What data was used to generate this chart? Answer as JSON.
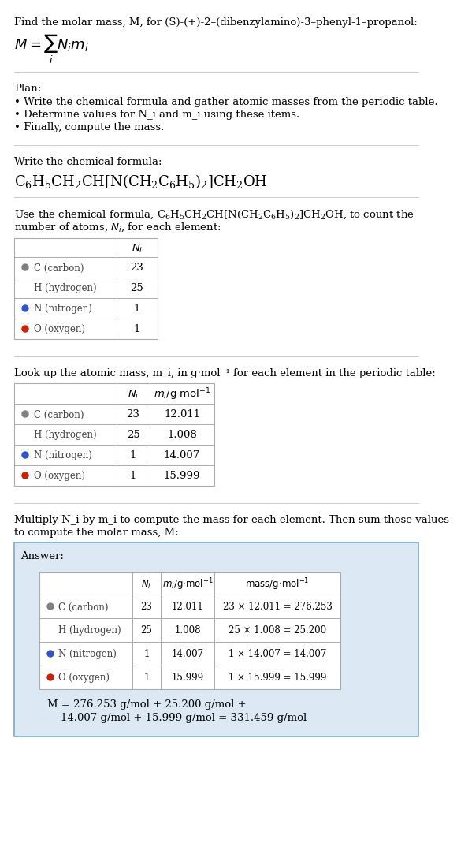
{
  "title_line1": "Find the molar mass, M, for (S)-(+)-2–(dibenzylamino)-3–phenyl-1–propanol:",
  "plan_header": "Plan:",
  "plan_bullets": [
    "• Write the chemical formula and gather atomic masses from the periodic table.",
    "• Determine values for N_i and m_i using these items.",
    "• Finally, compute the mass."
  ],
  "section2_header": "Write the chemical formula:",
  "section4_header": "Look up the atomic mass, m_i, in g·mol⁻¹ for each element in the periodic table:",
  "section5_header": "Multiply N_i by m_i to compute the mass for each element. Then sum those values\nto compute the molar mass, M:",
  "answer_box_color": "#dce9f5",
  "answer_label": "Answer:",
  "final_answer": "M = 276.253 g/mol + 25.200 g/mol +\n    14.007 g/mol + 15.999 g/mol = 331.459 g/mol",
  "bg_color": "#ffffff",
  "table_border_color": "#aaaaaa",
  "element_dot_colors": {
    "C": "#808080",
    "H_border": "#88aabb",
    "N": "#3355cc",
    "O": "#cc2200"
  },
  "elements": [
    "C",
    "H",
    "N",
    "O"
  ],
  "element_labels": [
    "C (carbon)",
    "H (hydrogen)",
    "N (nitrogen)",
    "O (oxygen)"
  ],
  "Ni_values": [
    "23",
    "25",
    "1",
    "1"
  ],
  "mi_values": [
    "12.011",
    "1.008",
    "14.007",
    "15.999"
  ],
  "mass_values": [
    "23 × 12.011 = 276.253",
    "25 × 1.008 = 25.200",
    "1 × 14.007 = 14.007",
    "1 × 15.999 = 15.999"
  ]
}
